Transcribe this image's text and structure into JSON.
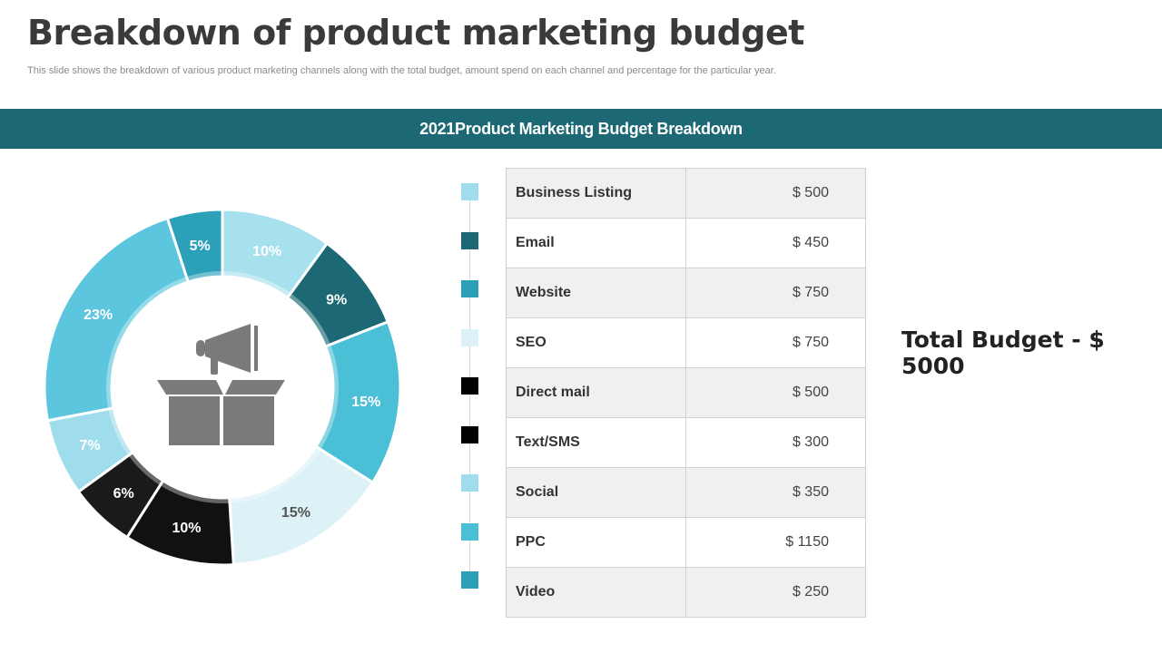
{
  "slide": {
    "title": "Breakdown of product marketing budget",
    "subtitle": "This slide shows the breakdown of various product marketing channels along with the total budget, amount spend on each channel and percentage for the particular year.",
    "banner": "2021Product Marketing Budget Breakdown",
    "total": "Total Budget - $ 5000"
  },
  "center_icon": "megaphone-box-icon",
  "chart_data": {
    "type": "pie",
    "slices": [
      {
        "label": "10%",
        "value": 10,
        "color": "#a8e1ee"
      },
      {
        "label": "9%",
        "value": 9,
        "color": "#1c6874"
      },
      {
        "label": "15%",
        "value": 15,
        "color": "#4bbfd6"
      },
      {
        "label": "15%",
        "value": 15,
        "color": "#dcf2f7"
      },
      {
        "label": "10%",
        "value": 10,
        "color": "#111111"
      },
      {
        "label": "6%",
        "value": 6,
        "color": "#1a1a1a"
      },
      {
        "label": "7%",
        "value": 7,
        "color": "#9fdcec"
      },
      {
        "label": "23%",
        "value": 23,
        "color": "#5cc6de"
      },
      {
        "label": "5%",
        "value": 5,
        "color": "#2ba0b8"
      }
    ]
  },
  "budget_table": {
    "rows": [
      {
        "name": "Business Listing",
        "amount": "$ 500",
        "color": "#9fdcec"
      },
      {
        "name": "Email",
        "amount": "$ 450",
        "color": "#1c6874"
      },
      {
        "name": "Website",
        "amount": "$ 750",
        "color": "#2ba0b8"
      },
      {
        "name": "SEO",
        "amount": "$ 750",
        "color": "#dcf2f7"
      },
      {
        "name": "Direct mail",
        "amount": "$ 500",
        "color": "#000000"
      },
      {
        "name": "Text/SMS",
        "amount": "$ 300",
        "color": "#000000"
      },
      {
        "name": "Social",
        "amount": "$ 350",
        "color": "#9fdcec"
      },
      {
        "name": "PPC",
        "amount": "$ 1150",
        "color": "#4bbfd6"
      },
      {
        "name": "Video",
        "amount": "$ 250",
        "color": "#2ba0b8"
      }
    ]
  }
}
